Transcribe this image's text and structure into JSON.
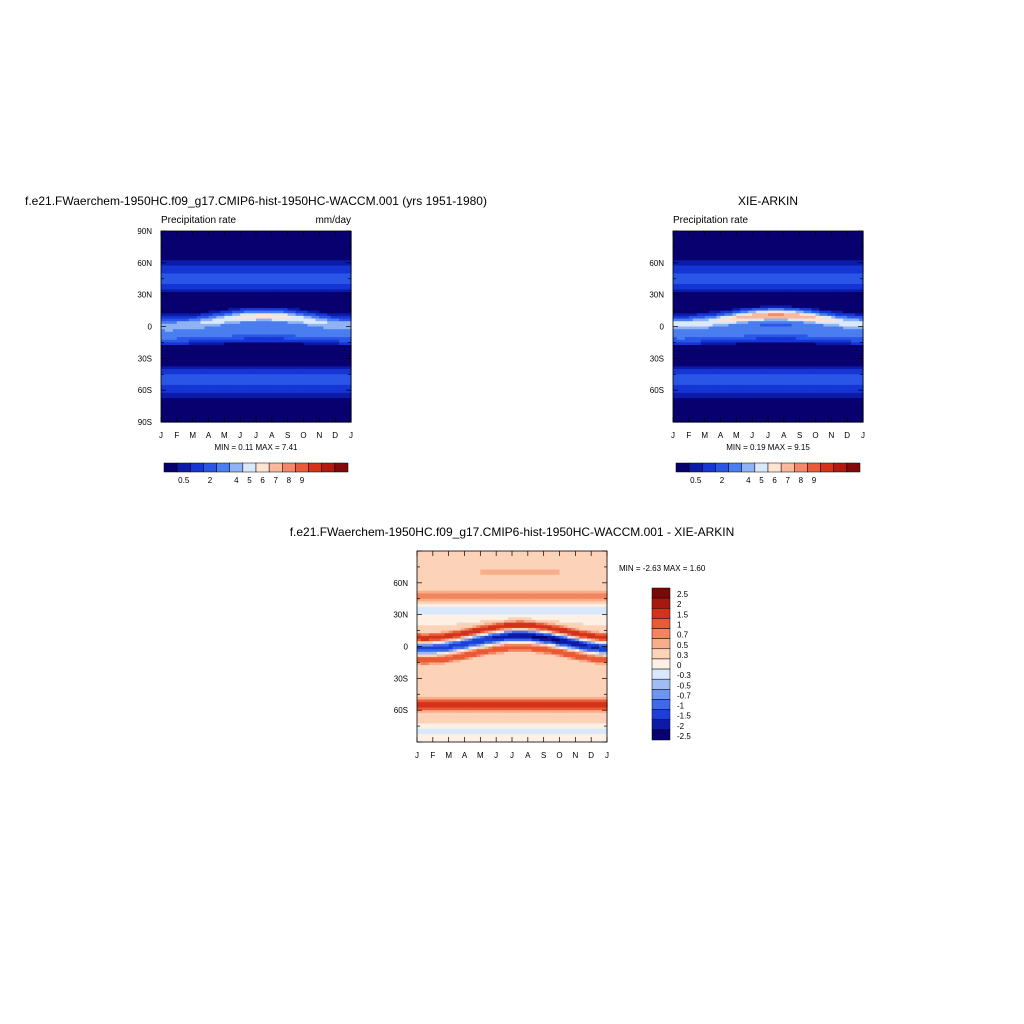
{
  "colors": {
    "precip_palette": [
      "#08006e",
      "#0c1aa8",
      "#1535d4",
      "#2a56e8",
      "#4a7ef0",
      "#8fb2f4",
      "#d9e9fb",
      "#fde3d4",
      "#f9b89c",
      "#f3876a",
      "#ea5a38",
      "#d6321a",
      "#b21a0f",
      "#820a08"
    ],
    "diff_palette": [
      "#08006e",
      "#0c1aa8",
      "#1d3fd8",
      "#3e6ae8",
      "#6e95f0",
      "#9fbdf5",
      "#d9e9fb",
      "#fef0e5",
      "#fcd2b8",
      "#f9ae8b",
      "#f2855f",
      "#e95a35",
      "#d2331a",
      "#a91810",
      "#7a0806"
    ]
  },
  "chart_data": [
    {
      "type": "heatmap",
      "title": "f.e21.FWaerchem-1950HC.f09_g17.CMIP6-hist-1950HC-WACCM.001 (yrs 1951-1980)",
      "left_label": "Precipitation rate",
      "right_label": "mm/day",
      "x_ticks": [
        "J",
        "F",
        "M",
        "A",
        "M",
        "J",
        "J",
        "A",
        "S",
        "O",
        "N",
        "D",
        "J"
      ],
      "y_ticks": [
        "90N",
        "60N",
        "30N",
        "0",
        "30S",
        "60S",
        "90S"
      ],
      "y_tick_values": [
        90,
        60,
        30,
        0,
        -30,
        -60,
        -90
      ],
      "ylim": [
        -90,
        90
      ],
      "stats_text": "MIN =   0.11 MAX =   7.41",
      "min": 0.11,
      "max": 7.41,
      "colorbar_labels": [
        "0.5",
        "2",
        "4",
        "5",
        "6",
        "7",
        "8",
        "9"
      ],
      "colorbar_levels": [
        0.5,
        1,
        2,
        3,
        4,
        5,
        6,
        7,
        8,
        9
      ],
      "itcz_max": 7.4,
      "itcz_shift": 0
    },
    {
      "type": "heatmap",
      "title": "XIE-ARKIN",
      "left_label": "Precipitation rate",
      "right_label": "",
      "x_ticks": [
        "J",
        "F",
        "M",
        "A",
        "M",
        "J",
        "J",
        "A",
        "S",
        "O",
        "N",
        "D",
        "J"
      ],
      "y_ticks": [
        "60N",
        "30N",
        "0",
        "30S",
        "60S"
      ],
      "y_tick_values": [
        60,
        30,
        0,
        -30,
        -60
      ],
      "ylim": [
        -90,
        90
      ],
      "stats_text": "MIN =   0.19 MAX =   9.15",
      "min": 0.19,
      "max": 9.15,
      "colorbar_labels": [
        "0.5",
        "2",
        "4",
        "5",
        "6",
        "7",
        "8",
        "9"
      ],
      "colorbar_levels": [
        0.5,
        1,
        2,
        3,
        4,
        5,
        6,
        7,
        8,
        9
      ],
      "itcz_max": 9.1,
      "itcz_shift": 2
    },
    {
      "type": "heatmap",
      "title": "f.e21.FWaerchem-1950HC.f09_g17.CMIP6-hist-1950HC-WACCM.001 - XIE-ARKIN",
      "x_ticks": [
        "J",
        "F",
        "M",
        "A",
        "M",
        "J",
        "J",
        "A",
        "S",
        "O",
        "N",
        "D",
        "J"
      ],
      "y_ticks": [
        "60N",
        "30N",
        "0",
        "30S",
        "60S"
      ],
      "y_tick_values": [
        60,
        30,
        0,
        -30,
        -60
      ],
      "ylim": [
        -90,
        90
      ],
      "stats_text": "MIN =  -2.63 MAX =   1.60",
      "min": -2.63,
      "max": 1.6,
      "colorbar_labels": [
        "2.5",
        "2",
        "1.5",
        "1",
        "0.7",
        "0.5",
        "0.3",
        "0",
        "-0.3",
        "-0.5",
        "-0.7",
        "-1",
        "-1.5",
        "-2",
        "-2.5"
      ],
      "colorbar_levels": [
        -2.5,
        -2,
        -1.5,
        -1,
        -0.7,
        -0.5,
        -0.3,
        0,
        0.3,
        0.5,
        0.7,
        1,
        1.5,
        2,
        2.5
      ]
    }
  ]
}
